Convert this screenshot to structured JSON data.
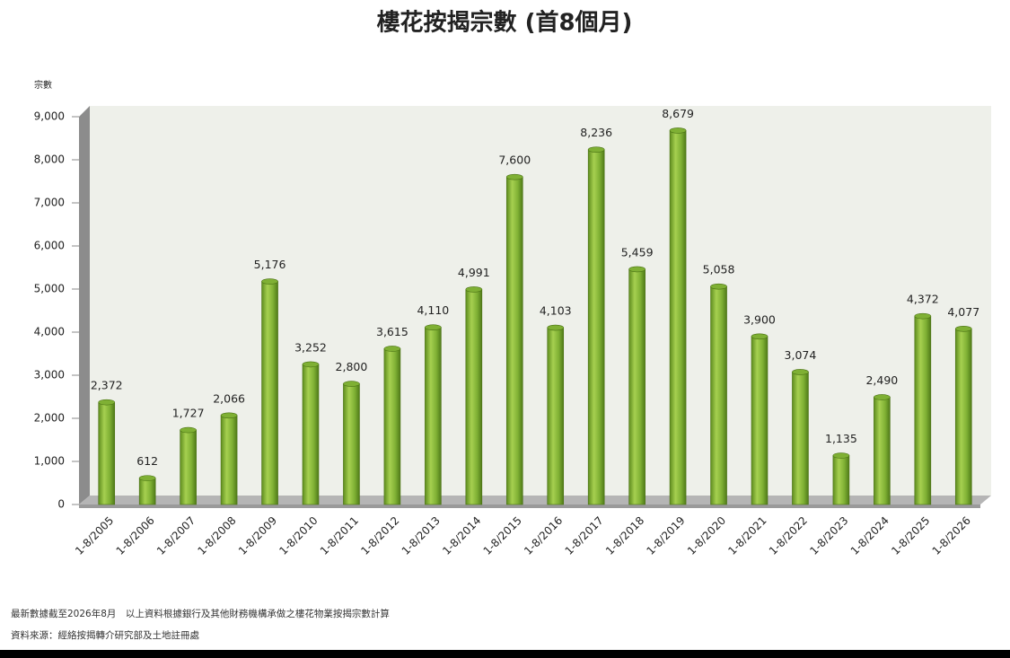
{
  "chart_data": {
    "type": "bar",
    "title": "樓花按揭宗數 (首8個月)",
    "y_label": "宗數",
    "categories": [
      "1-8/2005",
      "1-8/2006",
      "1-8/2007",
      "1-8/2008",
      "1-8/2009",
      "1-8/2010",
      "1-8/2011",
      "1-8/2012",
      "1-8/2013",
      "1-8/2014",
      "1-8/2015",
      "1-8/2016",
      "1-8/2017",
      "1-8/2018",
      "1-8/2019",
      "1-8/2020",
      "1-8/2021",
      "1-8/2022",
      "1-8/2023",
      "1-8/2024",
      "1-8/2025",
      "1-8/2026"
    ],
    "values": [
      2372,
      612,
      1727,
      2066,
      5176,
      3252,
      2800,
      3615,
      4110,
      4991,
      7600,
      4103,
      8236,
      5459,
      8679,
      5058,
      3900,
      3074,
      1135,
      2490,
      4372,
      4077
    ],
    "value_labels": [
      "2,372",
      "612",
      "1,727",
      "2,066",
      "5,176",
      "3,252",
      "2,800",
      "3,615",
      "4,110",
      "4,991",
      "7,600",
      "4,103",
      "8,236",
      "5,459",
      "8,679",
      "5,058",
      "3,900",
      "3,074",
      "1,135",
      "2,490",
      "4,372",
      "4,077"
    ],
    "color": "#7fb034",
    "ylim": [
      0,
      9000
    ],
    "yticks": [
      0,
      {
        "value": 1000,
        "label": "1,000"
      },
      {
        "value": 2000,
        "label": "2,000"
      },
      {
        "value": 3000,
        "label": "3,000"
      },
      {
        "value": 4000,
        "label": "4,000"
      },
      {
        "value": 5000,
        "label": "5,000"
      },
      {
        "value": 6000,
        "label": "6,000"
      },
      {
        "value": 7000,
        "label": "7,000"
      },
      {
        "value": 8000,
        "label": "8,000"
      },
      {
        "value": 9000,
        "label": "9,000"
      }
    ],
    "grid": false,
    "notes": [
      "最新數據截至2026年8月　以上資料根據銀行及其他財務機構承做之樓花物業按揭宗數計算",
      "資料來源：經絡按揭轉介研究部及土地註冊處"
    ]
  }
}
